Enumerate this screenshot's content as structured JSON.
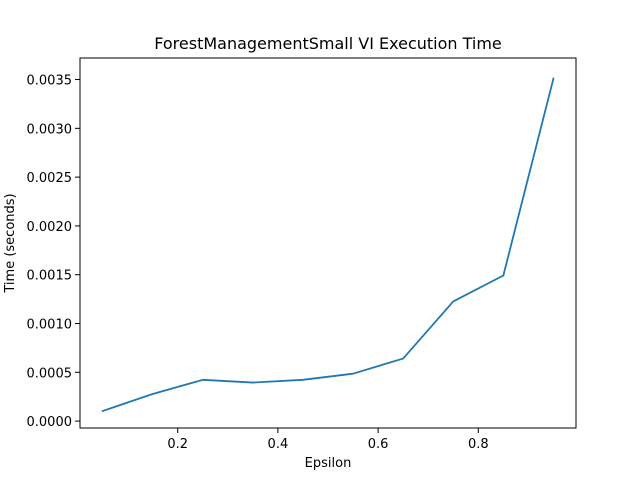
{
  "chart_data": {
    "type": "line",
    "title": "ForestManagementSmall VI Execution Time",
    "xlabel": "Epsilon",
    "ylabel": "Time (seconds)",
    "xlim": [
      0.005,
      0.995
    ],
    "ylim": [
      -7.06e-05,
      0.0037206
    ],
    "x_ticks": [
      0.2,
      0.4,
      0.6,
      0.8
    ],
    "x_tick_labels": [
      "0.2",
      "0.4",
      "0.6",
      "0.8"
    ],
    "y_ticks": [
      0.0,
      0.0005,
      0.001,
      0.0015,
      0.002,
      0.0025,
      0.003,
      0.0035
    ],
    "y_tick_labels": [
      "0.0000",
      "0.0005",
      "0.0010",
      "0.0015",
      "0.0020",
      "0.0025",
      "0.0030",
      "0.0035"
    ],
    "grid": false,
    "series": [
      {
        "color": "#1f77b4",
        "x": [
          0.05,
          0.15,
          0.25,
          0.35,
          0.45,
          0.55,
          0.65,
          0.75,
          0.85,
          0.95
        ],
        "y": [
          0.000103,
          0.000278,
          0.000423,
          0.000395,
          0.000423,
          0.000486,
          0.000641,
          0.001226,
          0.001492,
          0.003511
        ]
      }
    ]
  }
}
